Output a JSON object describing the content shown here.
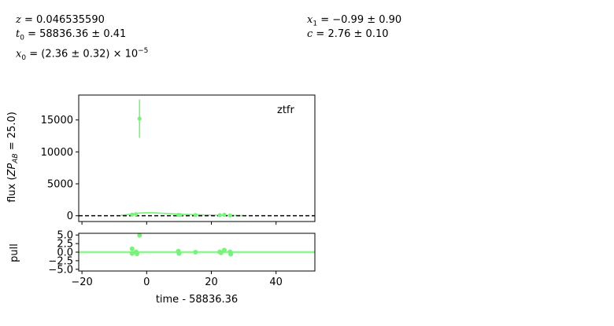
{
  "params": {
    "z": "0.046535590",
    "t0": "58836.36 ± 0.41",
    "x0_mantissa": "(2.36 ± 0.32) × 10",
    "x0_exponent": "−5",
    "x1": "−0.99 ± 0.90",
    "c": "2.76 ± 0.10"
  },
  "colors": {
    "band": "#77f27a",
    "model_band": "#c9f7c9",
    "zero_line": "#000000"
  },
  "chart_data": [
    {
      "type": "scatter",
      "band_label": "ztfr",
      "xlabel": "",
      "ylabel": "flux (ZP_AB = 25.0)",
      "ylabel_parts": {
        "pre": "flux (",
        "zp": "ZP",
        "sub": "AB",
        "post": " = 25.0)"
      },
      "xlim": [
        -21,
        52
      ],
      "ylim": [
        -900,
        18900
      ],
      "yticks": [
        0,
        5000,
        10000,
        15000
      ],
      "ytick_labels": [
        "0",
        "5000",
        "10000",
        "15000"
      ],
      "xticks": [
        -20,
        0,
        20,
        40
      ],
      "show_xtick_labels": false,
      "points": [
        {
          "x": -4.5,
          "y": 180,
          "yerr": 80
        },
        {
          "x": -3.3,
          "y": 260,
          "yerr": 90
        },
        {
          "x": -2.2,
          "y": 15200,
          "yerr": 3000
        },
        {
          "x": 9.8,
          "y": 140,
          "yerr": 60
        },
        {
          "x": 10.4,
          "y": 120,
          "yerr": 60
        },
        {
          "x": 15.1,
          "y": 110,
          "yerr": 60
        },
        {
          "x": 22.6,
          "y": 100,
          "yerr": 60
        },
        {
          "x": 24.0,
          "y": 160,
          "yerr": 60
        },
        {
          "x": 25.8,
          "y": 60,
          "yerr": 60
        }
      ],
      "model": {
        "x": [
          -8,
          -6,
          -4,
          -2,
          0,
          2,
          4,
          6,
          8,
          10,
          12,
          15,
          18,
          21,
          24,
          27,
          30
        ],
        "y": [
          60,
          180,
          330,
          430,
          470,
          460,
          420,
          370,
          310,
          260,
          220,
          170,
          130,
          100,
          70,
          40,
          15
        ]
      },
      "zero_line": true
    },
    {
      "type": "scatter",
      "xlabel": "time - 58836.36",
      "ylabel": "pull",
      "xlim": [
        -21,
        52
      ],
      "ylim": [
        -5.5,
        5.5
      ],
      "yticks": [
        -5.0,
        -2.5,
        0.0,
        2.5,
        5.0
      ],
      "ytick_labels": [
        "−5.0",
        "−2.5",
        "0.0",
        "2.5",
        "5.0"
      ],
      "xticks": [
        -20,
        0,
        20,
        40
      ],
      "xtick_labels": [
        "−20",
        "0",
        "20",
        "40"
      ],
      "points": [
        {
          "x": -4.5,
          "y": 1.0
        },
        {
          "x": -4.5,
          "y": -0.4
        },
        {
          "x": -3.3,
          "y": 0.1
        },
        {
          "x": -3.0,
          "y": -0.5
        },
        {
          "x": -2.2,
          "y": 4.9
        },
        {
          "x": 9.8,
          "y": 0.3
        },
        {
          "x": 10.0,
          "y": -0.4
        },
        {
          "x": 15.1,
          "y": 0.0
        },
        {
          "x": 22.6,
          "y": 0.1
        },
        {
          "x": 23.0,
          "y": -0.2
        },
        {
          "x": 24.0,
          "y": 0.6
        },
        {
          "x": 25.8,
          "y": 0.1
        },
        {
          "x": 26.0,
          "y": -0.6
        }
      ],
      "zero_band": 0.5
    }
  ]
}
